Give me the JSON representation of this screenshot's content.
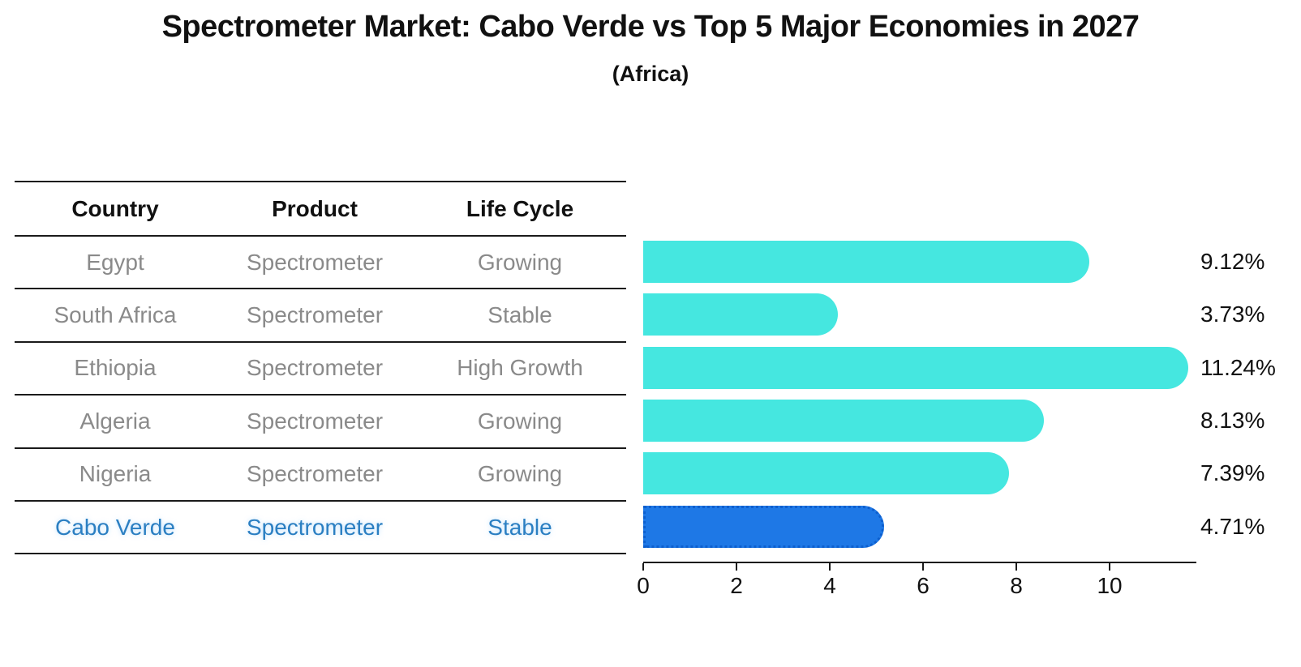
{
  "title": "Spectrometer Market: Cabo Verde vs Top 5 Major Economies in 2027",
  "subtitle": "(Africa)",
  "table": {
    "headers": [
      "Country",
      "Product",
      "Life Cycle"
    ],
    "rows": [
      {
        "country": "Egypt",
        "product": "Spectrometer",
        "life_cycle": "Growing",
        "highlight": false
      },
      {
        "country": "South Africa",
        "product": "Spectrometer",
        "life_cycle": "Stable",
        "highlight": false
      },
      {
        "country": "Ethiopia",
        "product": "Spectrometer",
        "life_cycle": "High Growth",
        "highlight": false
      },
      {
        "country": "Algeria",
        "product": "Spectrometer",
        "life_cycle": "Growing",
        "highlight": false
      },
      {
        "country": "Nigeria",
        "product": "Spectrometer",
        "life_cycle": "Growing",
        "highlight": false
      },
      {
        "country": "Cabo Verde",
        "product": "Spectrometer",
        "life_cycle": "Stable",
        "highlight": true
      }
    ]
  },
  "chart_data": {
    "type": "bar",
    "orientation": "horizontal",
    "title": "Spectrometer Market: Cabo Verde vs Top 5 Major Economies in 2027",
    "subtitle": "(Africa)",
    "categories": [
      "Egypt",
      "South Africa",
      "Ethiopia",
      "Algeria",
      "Nigeria",
      "Cabo Verde"
    ],
    "values": [
      9.12,
      3.73,
      11.24,
      8.13,
      7.39,
      4.71
    ],
    "value_labels": [
      "9.12%",
      "3.73%",
      "11.24%",
      "8.13%",
      "7.39%",
      "4.71%"
    ],
    "unit": "%",
    "xlim": [
      0,
      11.86
    ],
    "xticks": [
      0,
      2,
      4,
      6,
      8,
      10
    ],
    "grid": false,
    "legend": false,
    "highlight_index": 5
  },
  "colors": {
    "bar": "#45e7e0",
    "highlight_bar": "#1e78e6",
    "highlight_bar_border": "#0d5fce",
    "highlight_text": "#2b7fc2",
    "table_text": "#8a8a8a",
    "heading_text": "#111111",
    "axis": "#1a1a1a"
  }
}
